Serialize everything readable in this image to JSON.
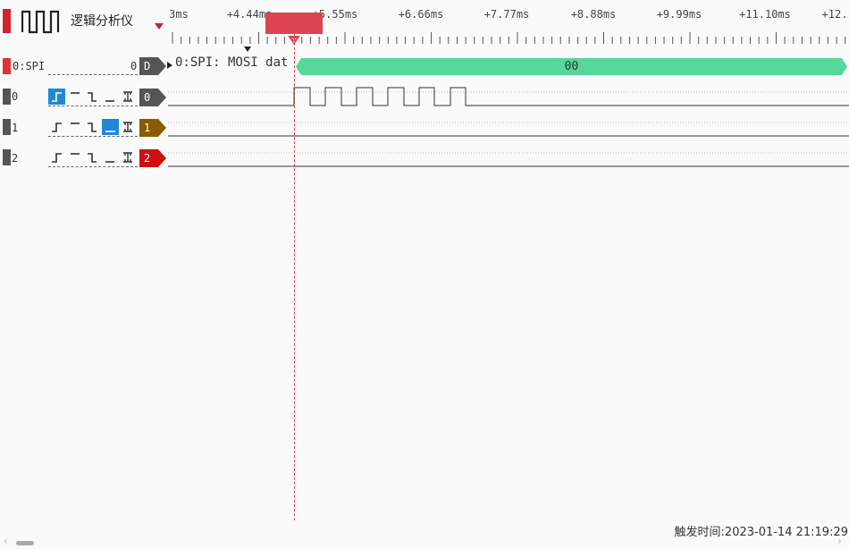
{
  "app": {
    "title": "逻辑分析仪",
    "accent_color": "#d0252f"
  },
  "timeline": {
    "ticks": [
      "3ms",
      "+4.44ms",
      "+5.55ms",
      "+6.66ms",
      "+7.77ms",
      "+8.88ms",
      "+9.99ms",
      "+11.10ms",
      "+12."
    ]
  },
  "decoder": {
    "label": "0:SPI",
    "value": "0",
    "tag": "D",
    "tag_color": "#555555",
    "row_text": "0:SPI: MOSI dat",
    "data_value": "00",
    "data_color": "#56d89b"
  },
  "channels": [
    {
      "label": "0",
      "tag": "0",
      "tag_color": "#555555",
      "trigger_selected": "rising"
    },
    {
      "label": "1",
      "tag": "1",
      "tag_color": "#8b5a00",
      "trigger_selected": "low"
    },
    {
      "label": "2",
      "tag": "2",
      "tag_color": "#cc1111",
      "trigger_selected": "none"
    }
  ],
  "trigger_options": [
    "rising",
    "high",
    "falling",
    "low",
    "any-edge"
  ],
  "status": {
    "trigger_time": "触发时间:2023-01-14 21:19:29"
  }
}
